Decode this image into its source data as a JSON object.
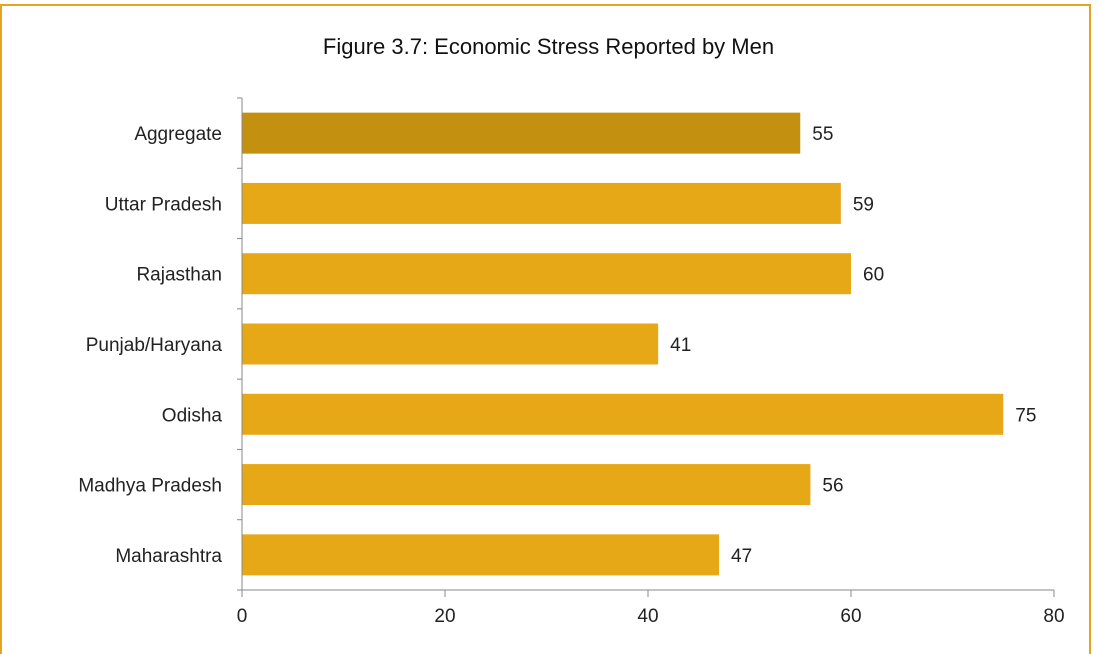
{
  "chart_data": {
    "type": "bar",
    "orientation": "horizontal",
    "title": "Figure 3.7: Economic Stress Reported by Men",
    "xlabel": "",
    "ylabel": "",
    "categories": [
      "Aggregate",
      "Uttar Pradesh",
      "Rajasthan",
      "Punjab/Haryana",
      "Odisha",
      "Madhya Pradesh",
      "Maharashtra"
    ],
    "values": [
      55,
      59,
      60,
      41,
      75,
      56,
      47
    ],
    "data_labels": [
      "55",
      "59",
      "60",
      "41",
      "75",
      "56",
      "47"
    ],
    "xlim": [
      0,
      80
    ],
    "xticks": [
      0,
      20,
      40,
      60,
      80
    ],
    "xtick_labels": [
      "0",
      "20",
      "40",
      "60",
      "80"
    ],
    "grid": false,
    "legend": "none",
    "colors": {
      "highlight": "#c39010",
      "bar": "#e6a817",
      "frame": "#e3a520",
      "axis": "#888888"
    },
    "highlight_index": 0
  }
}
